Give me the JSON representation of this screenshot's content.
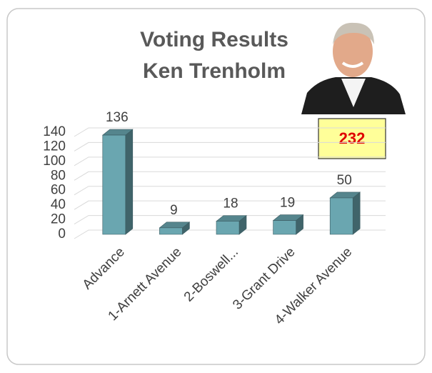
{
  "chart_data": {
    "type": "bar",
    "title": "Voting Results",
    "subtitle": "Ken Trenholm",
    "categories": [
      "Advance",
      "1-Arnett Avenue",
      "2-Boswell...",
      "3-Grant Drive",
      "4-Walker Avenue"
    ],
    "values": [
      136,
      9,
      18,
      19,
      50
    ],
    "color": "#6aa6b0",
    "ylim": [
      0,
      140
    ],
    "yticks": [
      0,
      20,
      40,
      60,
      80,
      100,
      120,
      140
    ],
    "grid": true,
    "annotation": "232"
  }
}
